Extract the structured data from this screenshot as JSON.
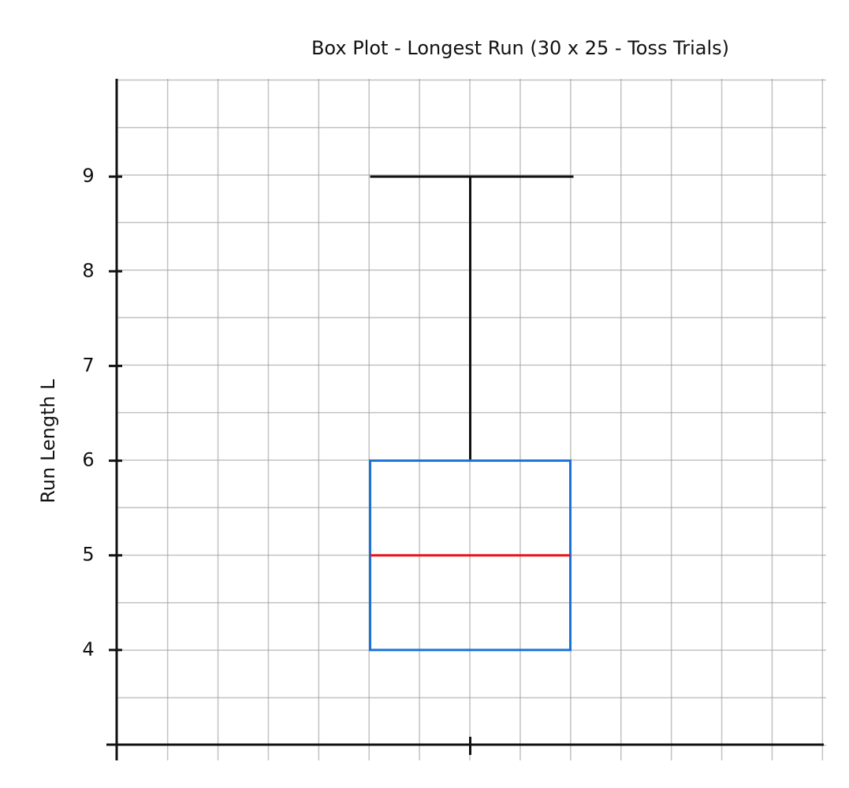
{
  "chart_data": {
    "type": "box",
    "title": "Box Plot - Longest Run (30 x 25 - Toss Trials)",
    "ylabel": "Run Length L",
    "boxes": [
      {
        "min": 4,
        "q1": 4,
        "median": 5,
        "q3": 6,
        "max": 9,
        "box_color": "#1a73d9",
        "median_color": "#e8141c",
        "whisker_color": "#111111"
      }
    ],
    "ylim": [
      3,
      10
    ],
    "yticks": [
      4,
      5,
      6,
      7,
      8,
      9
    ]
  }
}
